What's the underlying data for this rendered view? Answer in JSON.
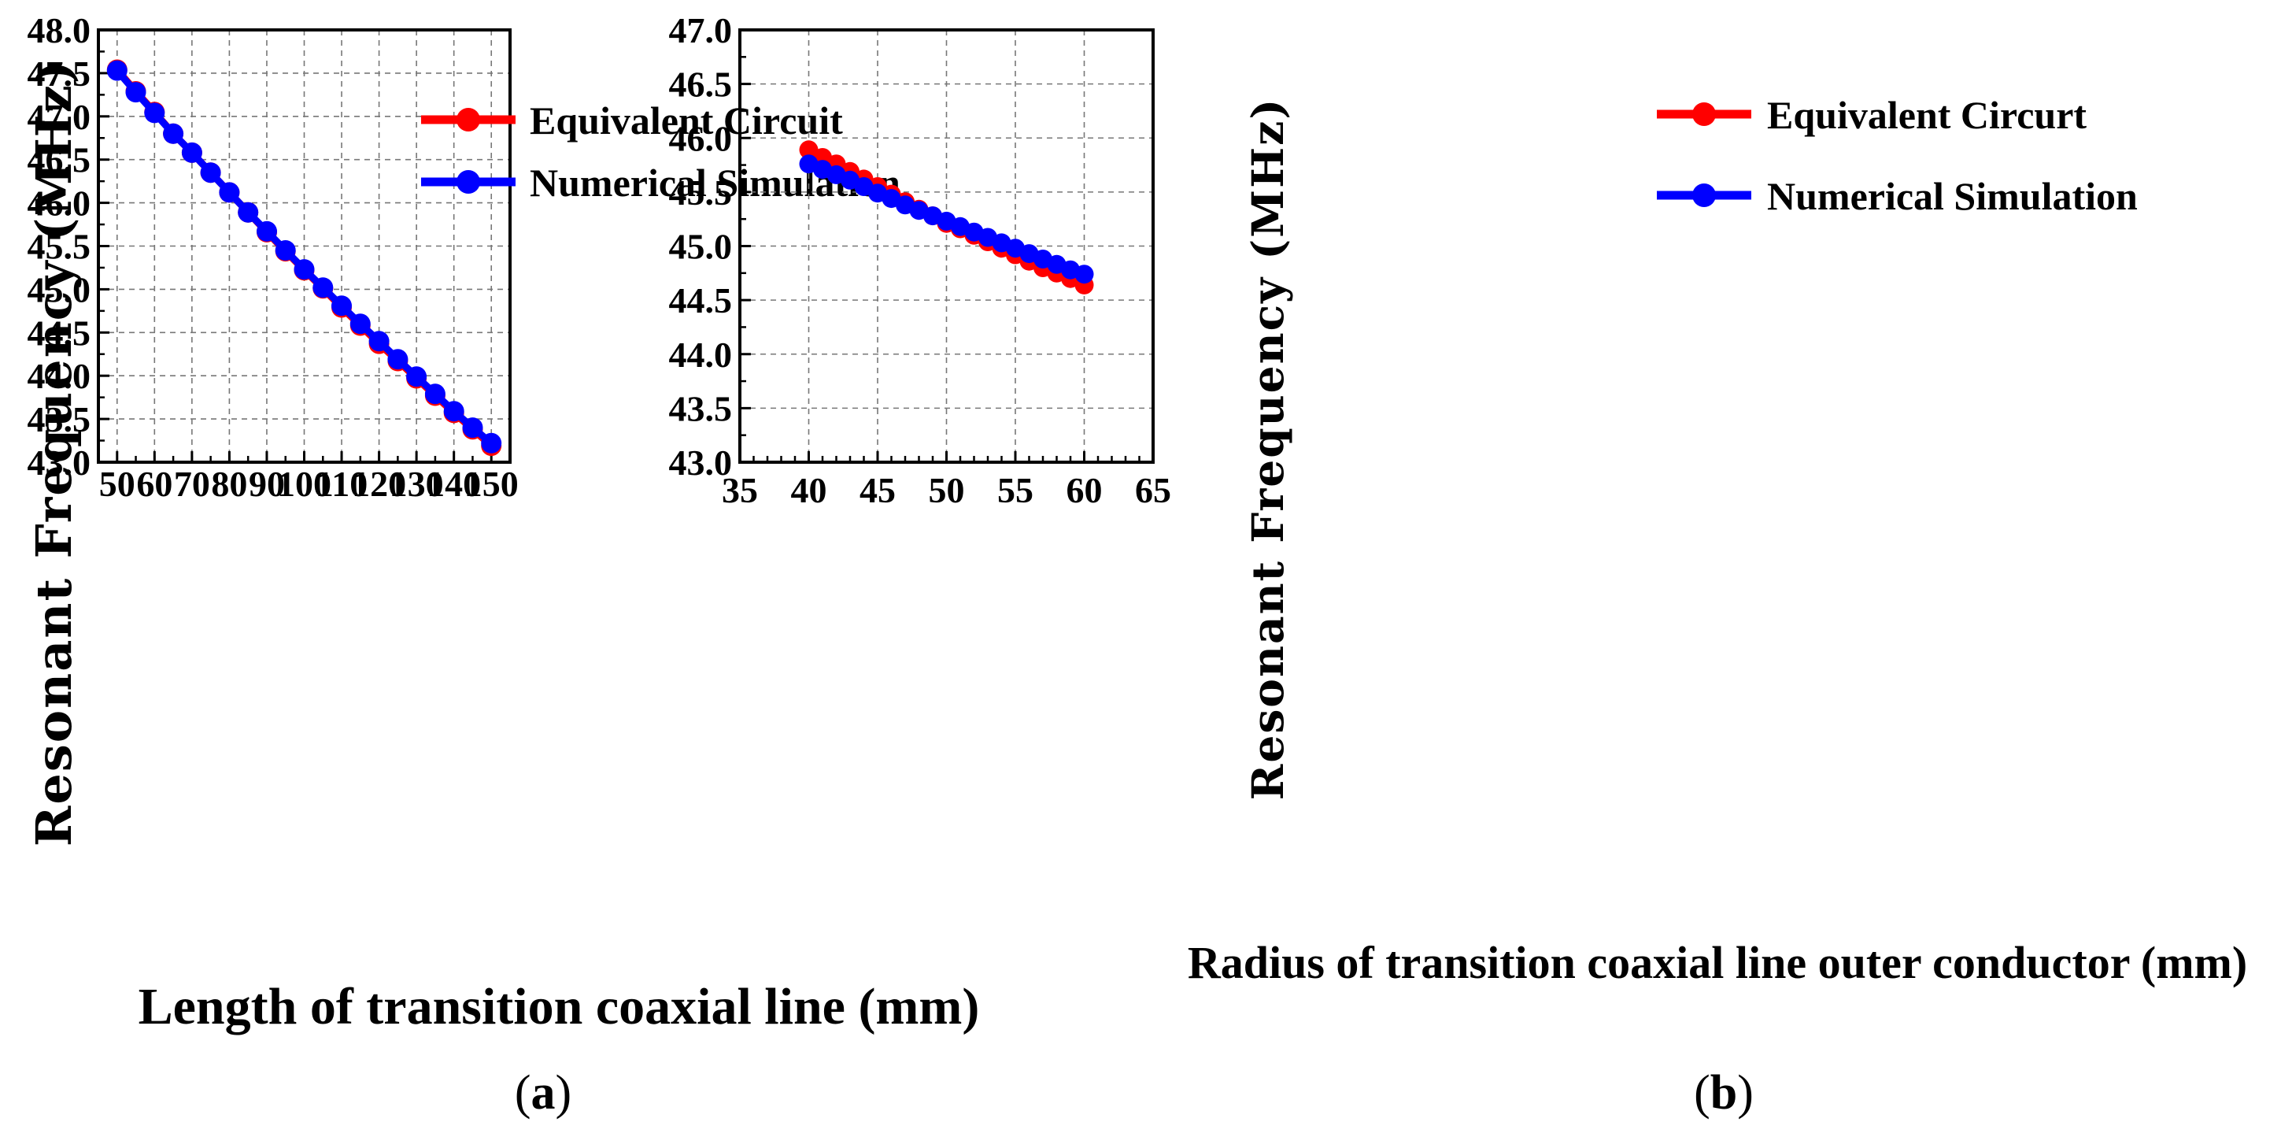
{
  "chart_data": [
    {
      "type": "line",
      "panel_label": "a",
      "xlabel": "Length of transition coaxial line (mm)",
      "ylabel": "Resonant Frequency (MHz)",
      "xlim": [
        45,
        155
      ],
      "ylim": [
        43.0,
        48.0
      ],
      "xticks": [
        50,
        60,
        70,
        80,
        90,
        100,
        110,
        120,
        130,
        140,
        150
      ],
      "yticks": [
        "43.0",
        "43.5",
        "44.0",
        "44.5",
        "45.0",
        "45.5",
        "46.0",
        "46.5",
        "47.0",
        "47.5",
        "48.0"
      ],
      "grid": true,
      "legend_position": "top-right",
      "series": [
        {
          "name": "Equivalent Circuit",
          "color": "#ff0000",
          "x": [
            50,
            55,
            60,
            65,
            70,
            75,
            80,
            85,
            90,
            95,
            100,
            105,
            110,
            115,
            120,
            125,
            130,
            135,
            140,
            145,
            150
          ],
          "y": [
            47.54,
            47.29,
            47.05,
            46.8,
            46.58,
            46.35,
            46.12,
            45.89,
            45.66,
            45.44,
            45.22,
            45.01,
            44.79,
            44.58,
            44.37,
            44.17,
            43.97,
            43.77,
            43.57,
            43.38,
            43.19
          ]
        },
        {
          "name": "Numerical Simulation",
          "color": "#0000ff",
          "x": [
            50,
            55,
            60,
            65,
            70,
            75,
            80,
            85,
            90,
            95,
            100,
            105,
            110,
            115,
            120,
            125,
            130,
            135,
            140,
            145,
            150
          ],
          "y": [
            47.53,
            47.28,
            47.04,
            46.8,
            46.58,
            46.35,
            46.12,
            45.89,
            45.67,
            45.45,
            45.23,
            45.02,
            44.81,
            44.6,
            44.4,
            44.19,
            43.99,
            43.79,
            43.59,
            43.4,
            43.22
          ]
        }
      ]
    },
    {
      "type": "line",
      "panel_label": "b",
      "xlabel": "Radius of transition coaxial line outer conductor (mm)",
      "ylabel": "Resonant Frequency (MHz)",
      "xlim": [
        35,
        65
      ],
      "ylim": [
        43.0,
        47.0
      ],
      "xticks": [
        35,
        40,
        45,
        50,
        55,
        60,
        65
      ],
      "yticks": [
        "43.0",
        "43.5",
        "44.0",
        "44.5",
        "45.0",
        "45.5",
        "46.0",
        "46.5",
        "47.0"
      ],
      "grid": true,
      "legend_position": "top-right",
      "series": [
        {
          "name": "Equivalent Circurt",
          "color": "#ff0000",
          "x": [
            40,
            41,
            42,
            43,
            44,
            45,
            46,
            47,
            48,
            49,
            50,
            51,
            52,
            53,
            54,
            55,
            56,
            57,
            58,
            59,
            60
          ],
          "y": [
            45.89,
            45.82,
            45.76,
            45.69,
            45.62,
            45.55,
            45.48,
            45.41,
            45.34,
            45.28,
            45.21,
            45.16,
            45.1,
            45.04,
            44.98,
            44.92,
            44.86,
            44.8,
            44.75,
            44.7,
            44.64
          ]
        },
        {
          "name": "Numerical Simulation",
          "color": "#0000ff",
          "x": [
            40,
            41,
            42,
            43,
            44,
            45,
            46,
            47,
            48,
            49,
            50,
            51,
            52,
            53,
            54,
            55,
            56,
            57,
            58,
            59,
            60
          ],
          "y": [
            45.76,
            45.71,
            45.66,
            45.61,
            45.55,
            45.49,
            45.44,
            45.38,
            45.33,
            45.28,
            45.23,
            45.18,
            45.13,
            45.08,
            45.03,
            44.98,
            44.93,
            44.88,
            44.83,
            44.78,
            44.74
          ]
        }
      ]
    }
  ]
}
